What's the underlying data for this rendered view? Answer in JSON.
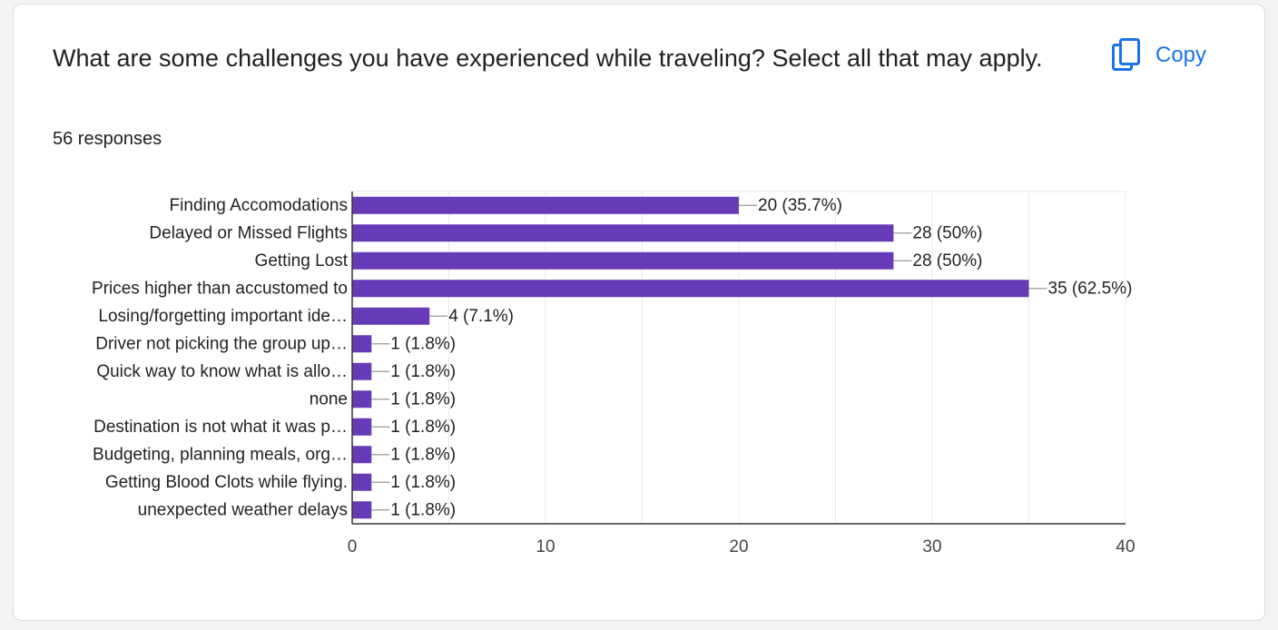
{
  "card": {
    "question": "What are some challenges you have experienced while traveling? Select all that may apply.",
    "responses": "56 responses",
    "copy_label": "Copy",
    "copy_icon": "copy-icon"
  },
  "colors": {
    "bar": "#673ab7",
    "accent": "#1a73e8",
    "grid": "#e8e8e8",
    "axis": "#333333"
  },
  "chart_data": {
    "type": "bar",
    "orientation": "horizontal",
    "categories": [
      "Finding Accomodations",
      "Delayed or Missed Flights",
      "Getting Lost",
      "Prices higher than accustomed to",
      "Losing/forgetting important ide…",
      "Driver not picking the group up…",
      "Quick way to know what is allo…",
      "none",
      "Destination is not what it was p…",
      "Budgeting, planning meals, org…",
      "Getting Blood Clots while flying.",
      "unexpected weather delays"
    ],
    "values": [
      20,
      28,
      28,
      35,
      4,
      1,
      1,
      1,
      1,
      1,
      1,
      1
    ],
    "data_labels": [
      "20 (35.7%)",
      "28 (50%)",
      "28 (50%)",
      "35 (62.5%)",
      "4 (7.1%)",
      "1 (1.8%)",
      "1 (1.8%)",
      "1 (1.8%)",
      "1 (1.8%)",
      "1 (1.8%)",
      "1 (1.8%)",
      "1 (1.8%)"
    ],
    "xlim": [
      0,
      40
    ],
    "xticks": [
      0,
      10,
      20,
      30,
      40
    ],
    "title": "",
    "xlabel": "",
    "ylabel": "",
    "grid": true,
    "legend": "none"
  }
}
